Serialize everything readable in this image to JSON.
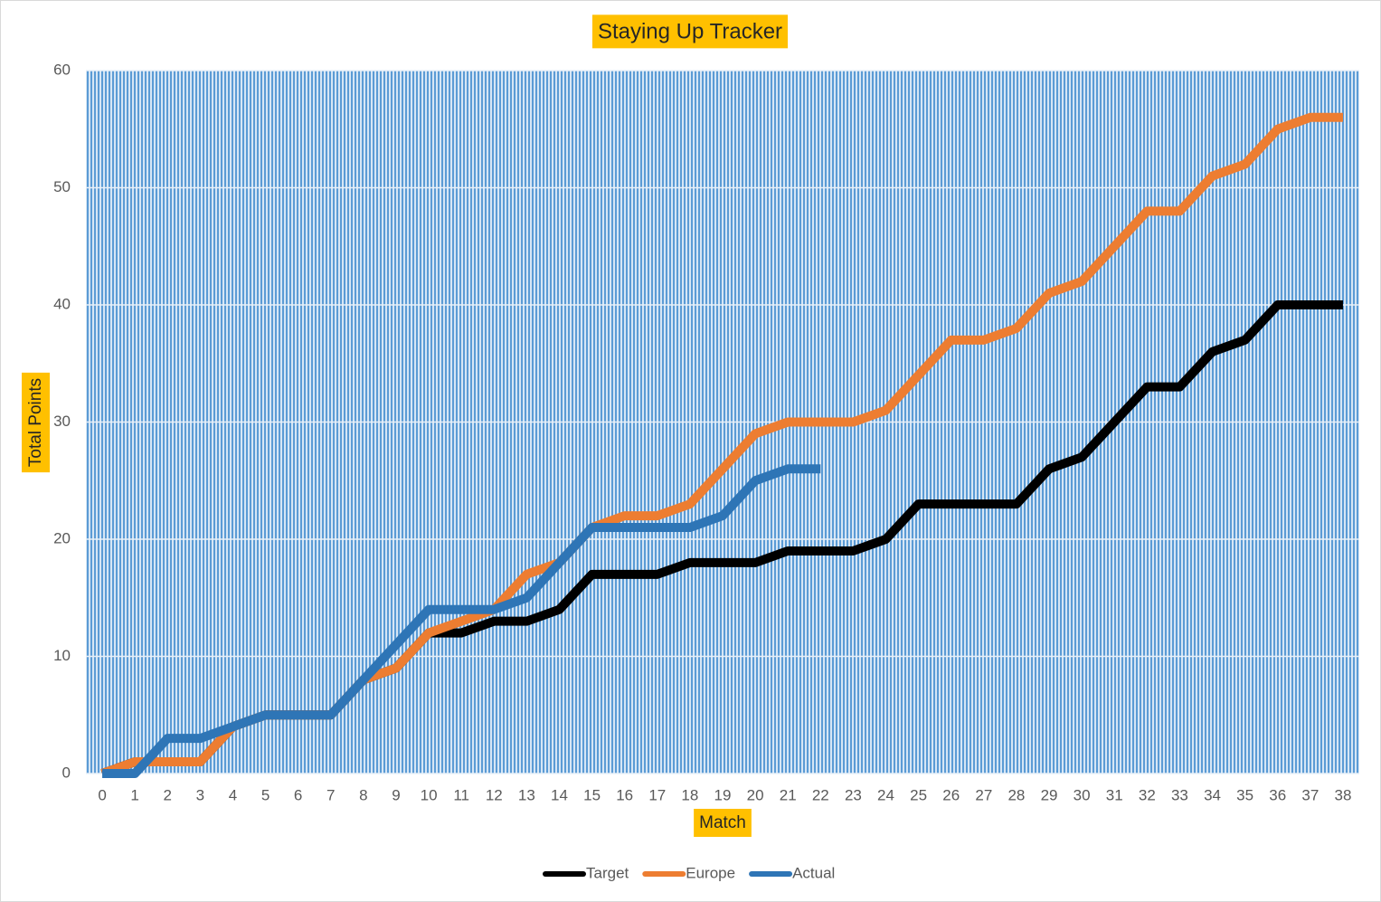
{
  "chart_data": {
    "type": "line",
    "title": "Staying Up Tracker",
    "xlabel": "Match",
    "ylabel": "Total Points",
    "categories": [
      "0",
      "1",
      "2",
      "3",
      "4",
      "5",
      "6",
      "7",
      "8",
      "9",
      "10",
      "11",
      "12",
      "13",
      "14",
      "15",
      "16",
      "17",
      "18",
      "19",
      "20",
      "21",
      "22",
      "23",
      "24",
      "25",
      "26",
      "27",
      "28",
      "29",
      "30",
      "31",
      "32",
      "33",
      "34",
      "35",
      "36",
      "37",
      "38"
    ],
    "series": [
      {
        "name": "Target",
        "color": "#000000",
        "values": [
          0,
          1,
          1,
          1,
          4,
          5,
          5,
          5,
          8,
          9,
          12,
          12,
          13,
          13,
          14,
          17,
          17,
          17,
          18,
          18,
          18,
          19,
          19,
          19,
          20,
          23,
          23,
          23,
          23,
          26,
          27,
          30,
          33,
          33,
          36,
          37,
          40,
          40,
          40
        ]
      },
      {
        "name": "Europe",
        "color": "#ed7d31",
        "values": [
          0,
          1,
          1,
          1,
          4,
          5,
          5,
          5,
          8,
          9,
          12,
          13,
          14,
          17,
          18,
          21,
          22,
          22,
          23,
          26,
          29,
          30,
          30,
          30,
          31,
          34,
          37,
          37,
          38,
          41,
          42,
          45,
          48,
          48,
          51,
          52,
          55,
          56,
          56
        ]
      },
      {
        "name": "Actual",
        "color": "#2e75b6",
        "values": [
          0,
          0,
          3,
          3,
          4,
          5,
          5,
          5,
          8,
          11,
          14,
          14,
          14,
          15,
          18,
          21,
          21,
          21,
          21,
          22,
          25,
          26,
          26,
          null,
          null,
          null,
          null,
          null,
          null,
          null,
          null,
          null,
          null,
          null,
          null,
          null,
          null,
          null,
          null
        ]
      }
    ],
    "ylim": [
      0,
      60
    ],
    "yticks": [
      0,
      10,
      20,
      30,
      40,
      50,
      60
    ],
    "grid": true,
    "legend": "bottom"
  }
}
